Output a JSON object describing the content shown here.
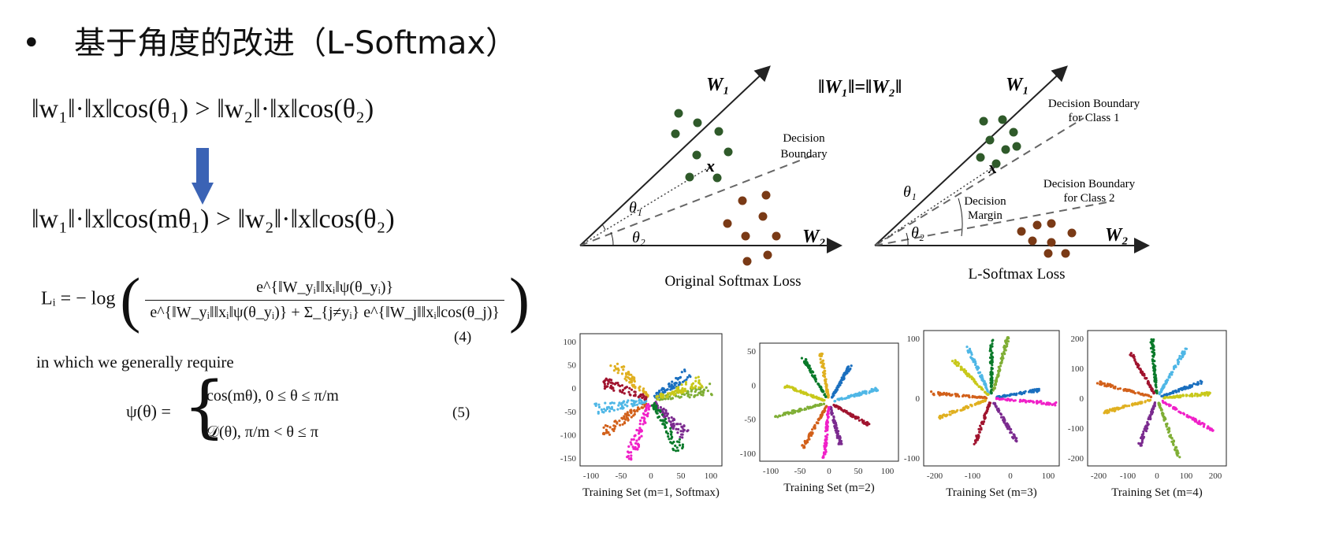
{
  "slide": {
    "bullet": "•",
    "title": "基于角度的改进（L-Softmax）"
  },
  "equations": {
    "eq1": "‖w₁‖·‖x‖cos(θ₁) > ‖w₂‖·‖x‖cos(θ₂)",
    "eq2": "‖w₁‖·‖x‖cos(mθ₁) > ‖w₂‖·‖x‖cos(θ₂)",
    "loss_lhs": "Lᵢ = − log",
    "loss_num": "e^{‖W_yᵢ‖‖xᵢ‖ψ(θ_yᵢ)}",
    "loss_den": "e^{‖W_yᵢ‖‖xᵢ‖ψ(θ_yᵢ)} + Σ_{j≠yᵢ} e^{‖W_j‖‖xᵢ‖cos(θ_j)}",
    "loss_tag": "(4)",
    "require_text": "in which we generally require",
    "psi_lhs": "ψ(θ) =",
    "psi_case1": "cos(mθ),    0 ≤ θ ≤ π/m",
    "psi_case2": "𝒟(θ),    π/m < θ ≤ π",
    "psi_tag": "(5)"
  },
  "diagram": {
    "w1": "W₁",
    "w2": "W₂",
    "norm_eq": "‖W₁‖=‖W₂‖",
    "x": "x",
    "theta1": "θ₁",
    "theta2": "θ₂",
    "left_boundary_1": "Decision",
    "left_boundary_2": "Boundary",
    "left_caption": "Original Softmax Loss",
    "right_b1_1": "Decision Boundary",
    "right_b1_2": "for Class 1",
    "right_b2_1": "Decision Boundary",
    "right_b2_2": "for Class 2",
    "margin_1": "Decision",
    "margin_2": "Margin",
    "right_caption": "L-Softmax Loss",
    "green": "#2f5a2a",
    "brown": "#7a3a16"
  },
  "plots": [
    {
      "caption": "Training Set (m=1, Softmax)",
      "yticks": [
        "100",
        "50",
        "0",
        "-50",
        "-100",
        "-150"
      ],
      "xticks": [
        "-100",
        "-50",
        "0",
        "50",
        "100"
      ]
    },
    {
      "caption": "Training Set (m=2)",
      "yticks": [
        "50",
        "0",
        "-50",
        "-100"
      ],
      "xticks": [
        "-100",
        "-50",
        "0",
        "50",
        "100"
      ]
    },
    {
      "caption": "Training Set (m=3)",
      "yticks": [
        "100",
        "0",
        "-100"
      ],
      "xticks": [
        "-200",
        "-100",
        "0",
        "100"
      ]
    },
    {
      "caption": "Training Set (m=4)",
      "yticks": [
        "200",
        "100",
        "0",
        "-100",
        "-200"
      ],
      "xticks": [
        "-200",
        "-100",
        "0",
        "100",
        "200"
      ]
    }
  ],
  "arrow_color": "#3b63b5",
  "cluster_colors": [
    "#1a6fbf",
    "#d2601a",
    "#e0b020",
    "#7b2b8f",
    "#7fae35",
    "#4fb7e6",
    "#a0142f",
    "#f020c8",
    "#0a7a2a",
    "#c8c81a"
  ]
}
